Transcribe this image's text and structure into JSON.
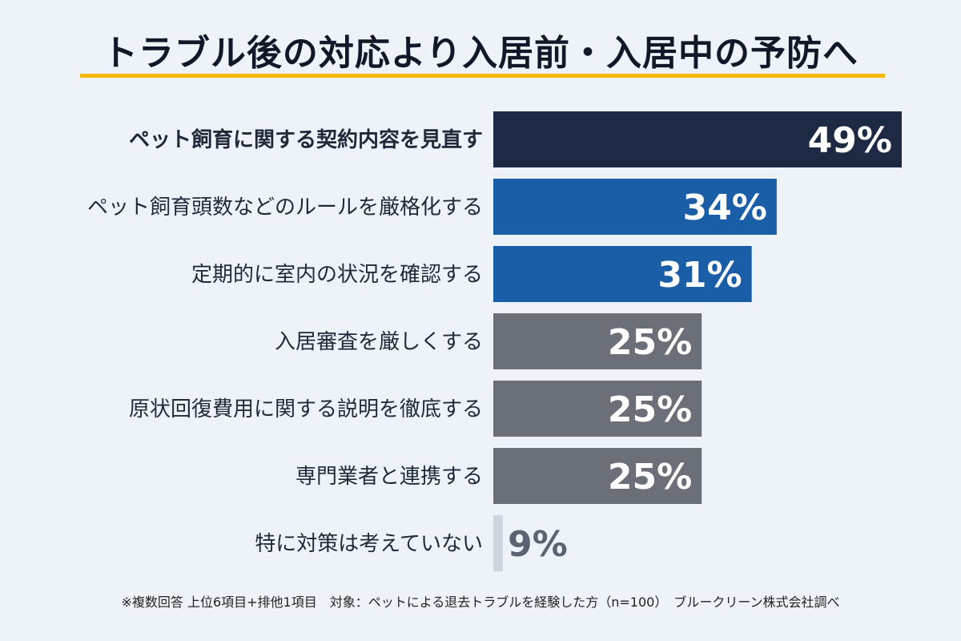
{
  "title": "トラブル後の対応より入居前・入居中の予防へ",
  "footnote": "※複数回答 上位6項目+排他1項目　対象：ペットによる退去トラブルを経験した方（n=100）　ブルークリーン株式会社調べ",
  "colors": {
    "background": "#eef3f9",
    "accent_underline": "#f5b800",
    "top": "#1e2a44",
    "blue": "#1b5ea8",
    "gray": "#6b6f78",
    "light": "#cfd5de",
    "value_light": "#5b6270"
  },
  "chart_data": {
    "type": "bar",
    "orientation": "horizontal",
    "categories": [
      "ペット飼育に関する契約内容を見直す",
      "ペット飼育頭数などのルールを厳格化する",
      "定期的に室内の状況を確認する",
      "入居審査を厳しくする",
      "原状回復費用に関する説明を徹底する",
      "専門業者と連携する",
      "特に対策は考えていない"
    ],
    "values": [
      49,
      34,
      31,
      25,
      25,
      25,
      9
    ],
    "value_labels": [
      "49%",
      "34%",
      "31%",
      "25%",
      "25%",
      "25%",
      "9%"
    ],
    "bar_colors": [
      "#1e2a44",
      "#1b5ea8",
      "#1b5ea8",
      "#6b6f78",
      "#6b6f78",
      "#6b6f78",
      "#cfd5de"
    ],
    "emphasized_category_index": 0,
    "xlim": [
      0,
      49
    ]
  }
}
